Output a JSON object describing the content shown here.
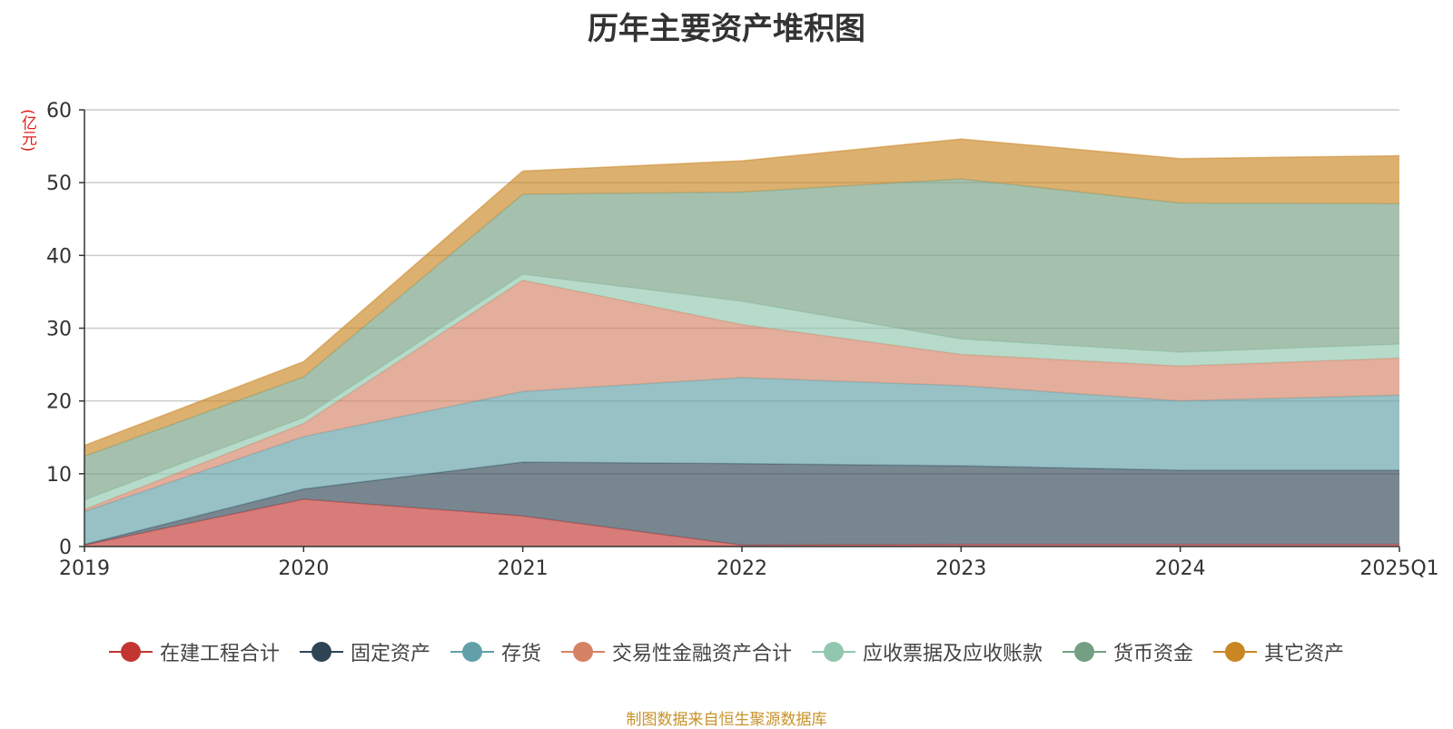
{
  "chart_data": {
    "type": "area",
    "stacked": true,
    "title": "历年主要资产堆积图",
    "ylabel": "(亿元)",
    "xlabel": "",
    "ylim": [
      0,
      60
    ],
    "yticks": [
      0,
      10,
      20,
      30,
      40,
      50,
      60
    ],
    "categories": [
      "2019",
      "2020",
      "2021",
      "2022",
      "2023",
      "2024",
      "2025Q1"
    ],
    "series": [
      {
        "name": "在建工程合计",
        "color": "#c23531",
        "values": [
          0.2,
          6.5,
          4.2,
          0.2,
          0.3,
          0.3,
          0.3
        ]
      },
      {
        "name": "固定资产",
        "color": "#2f4554",
        "values": [
          0.1,
          1.4,
          7.4,
          11.2,
          10.8,
          10.2,
          10.2
        ]
      },
      {
        "name": "存货",
        "color": "#61a0a8",
        "values": [
          4.5,
          7.2,
          9.7,
          11.8,
          11.0,
          9.5,
          10.3
        ]
      },
      {
        "name": "交易性金融资产合计",
        "color": "#d48265",
        "values": [
          0.3,
          1.8,
          15.3,
          7.3,
          4.3,
          4.8,
          5.1
        ]
      },
      {
        "name": "应收票据及应收账款",
        "color": "#91c7ae",
        "values": [
          1.3,
          0.8,
          0.8,
          3.2,
          2.1,
          1.9,
          1.9
        ]
      },
      {
        "name": "货币资金",
        "color": "#749f83",
        "values": [
          6.0,
          5.6,
          11.0,
          15.0,
          22.0,
          20.5,
          19.3
        ]
      },
      {
        "name": "其它资产",
        "color": "#ca8622",
        "values": [
          1.5,
          2.1,
          3.2,
          4.3,
          5.5,
          6.1,
          6.6
        ]
      }
    ],
    "legend_position": "bottom",
    "grid": true
  },
  "footer": "制图数据来自恒生聚源数据库"
}
